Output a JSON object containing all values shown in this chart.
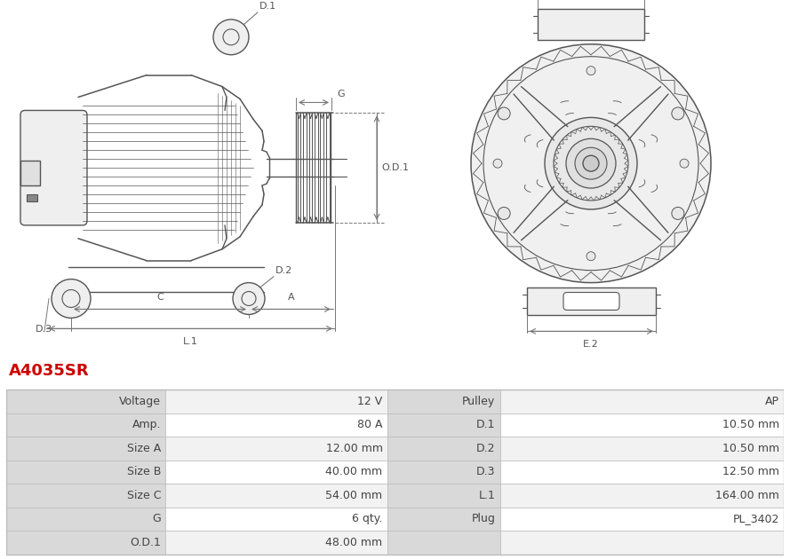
{
  "title": "A4035SR",
  "title_color": "#cc0000",
  "bg_color": "#ffffff",
  "table_data": [
    [
      "Voltage",
      "12 V",
      "Pulley",
      "AP"
    ],
    [
      "Amp.",
      "80 A",
      "D.1",
      "10.50 mm"
    ],
    [
      "Size A",
      "12.00 mm",
      "D.2",
      "10.50 mm"
    ],
    [
      "Size B",
      "40.00 mm",
      "D.3",
      "12.50 mm"
    ],
    [
      "Size C",
      "54.00 mm",
      "L.1",
      "164.00 mm"
    ],
    [
      "G",
      "6 qty.",
      "Plug",
      "PL_3402"
    ],
    [
      "O.D.1",
      "48.00 mm",
      "",
      ""
    ]
  ],
  "label_bg": "#d9d9d9",
  "val_bg_even": "#f2f2f2",
  "val_bg_odd": "#ffffff",
  "border_color": "#bbbbbb",
  "text_color": "#444444",
  "font_size": 9,
  "line_color": "#555555",
  "dim_color": "#777777"
}
